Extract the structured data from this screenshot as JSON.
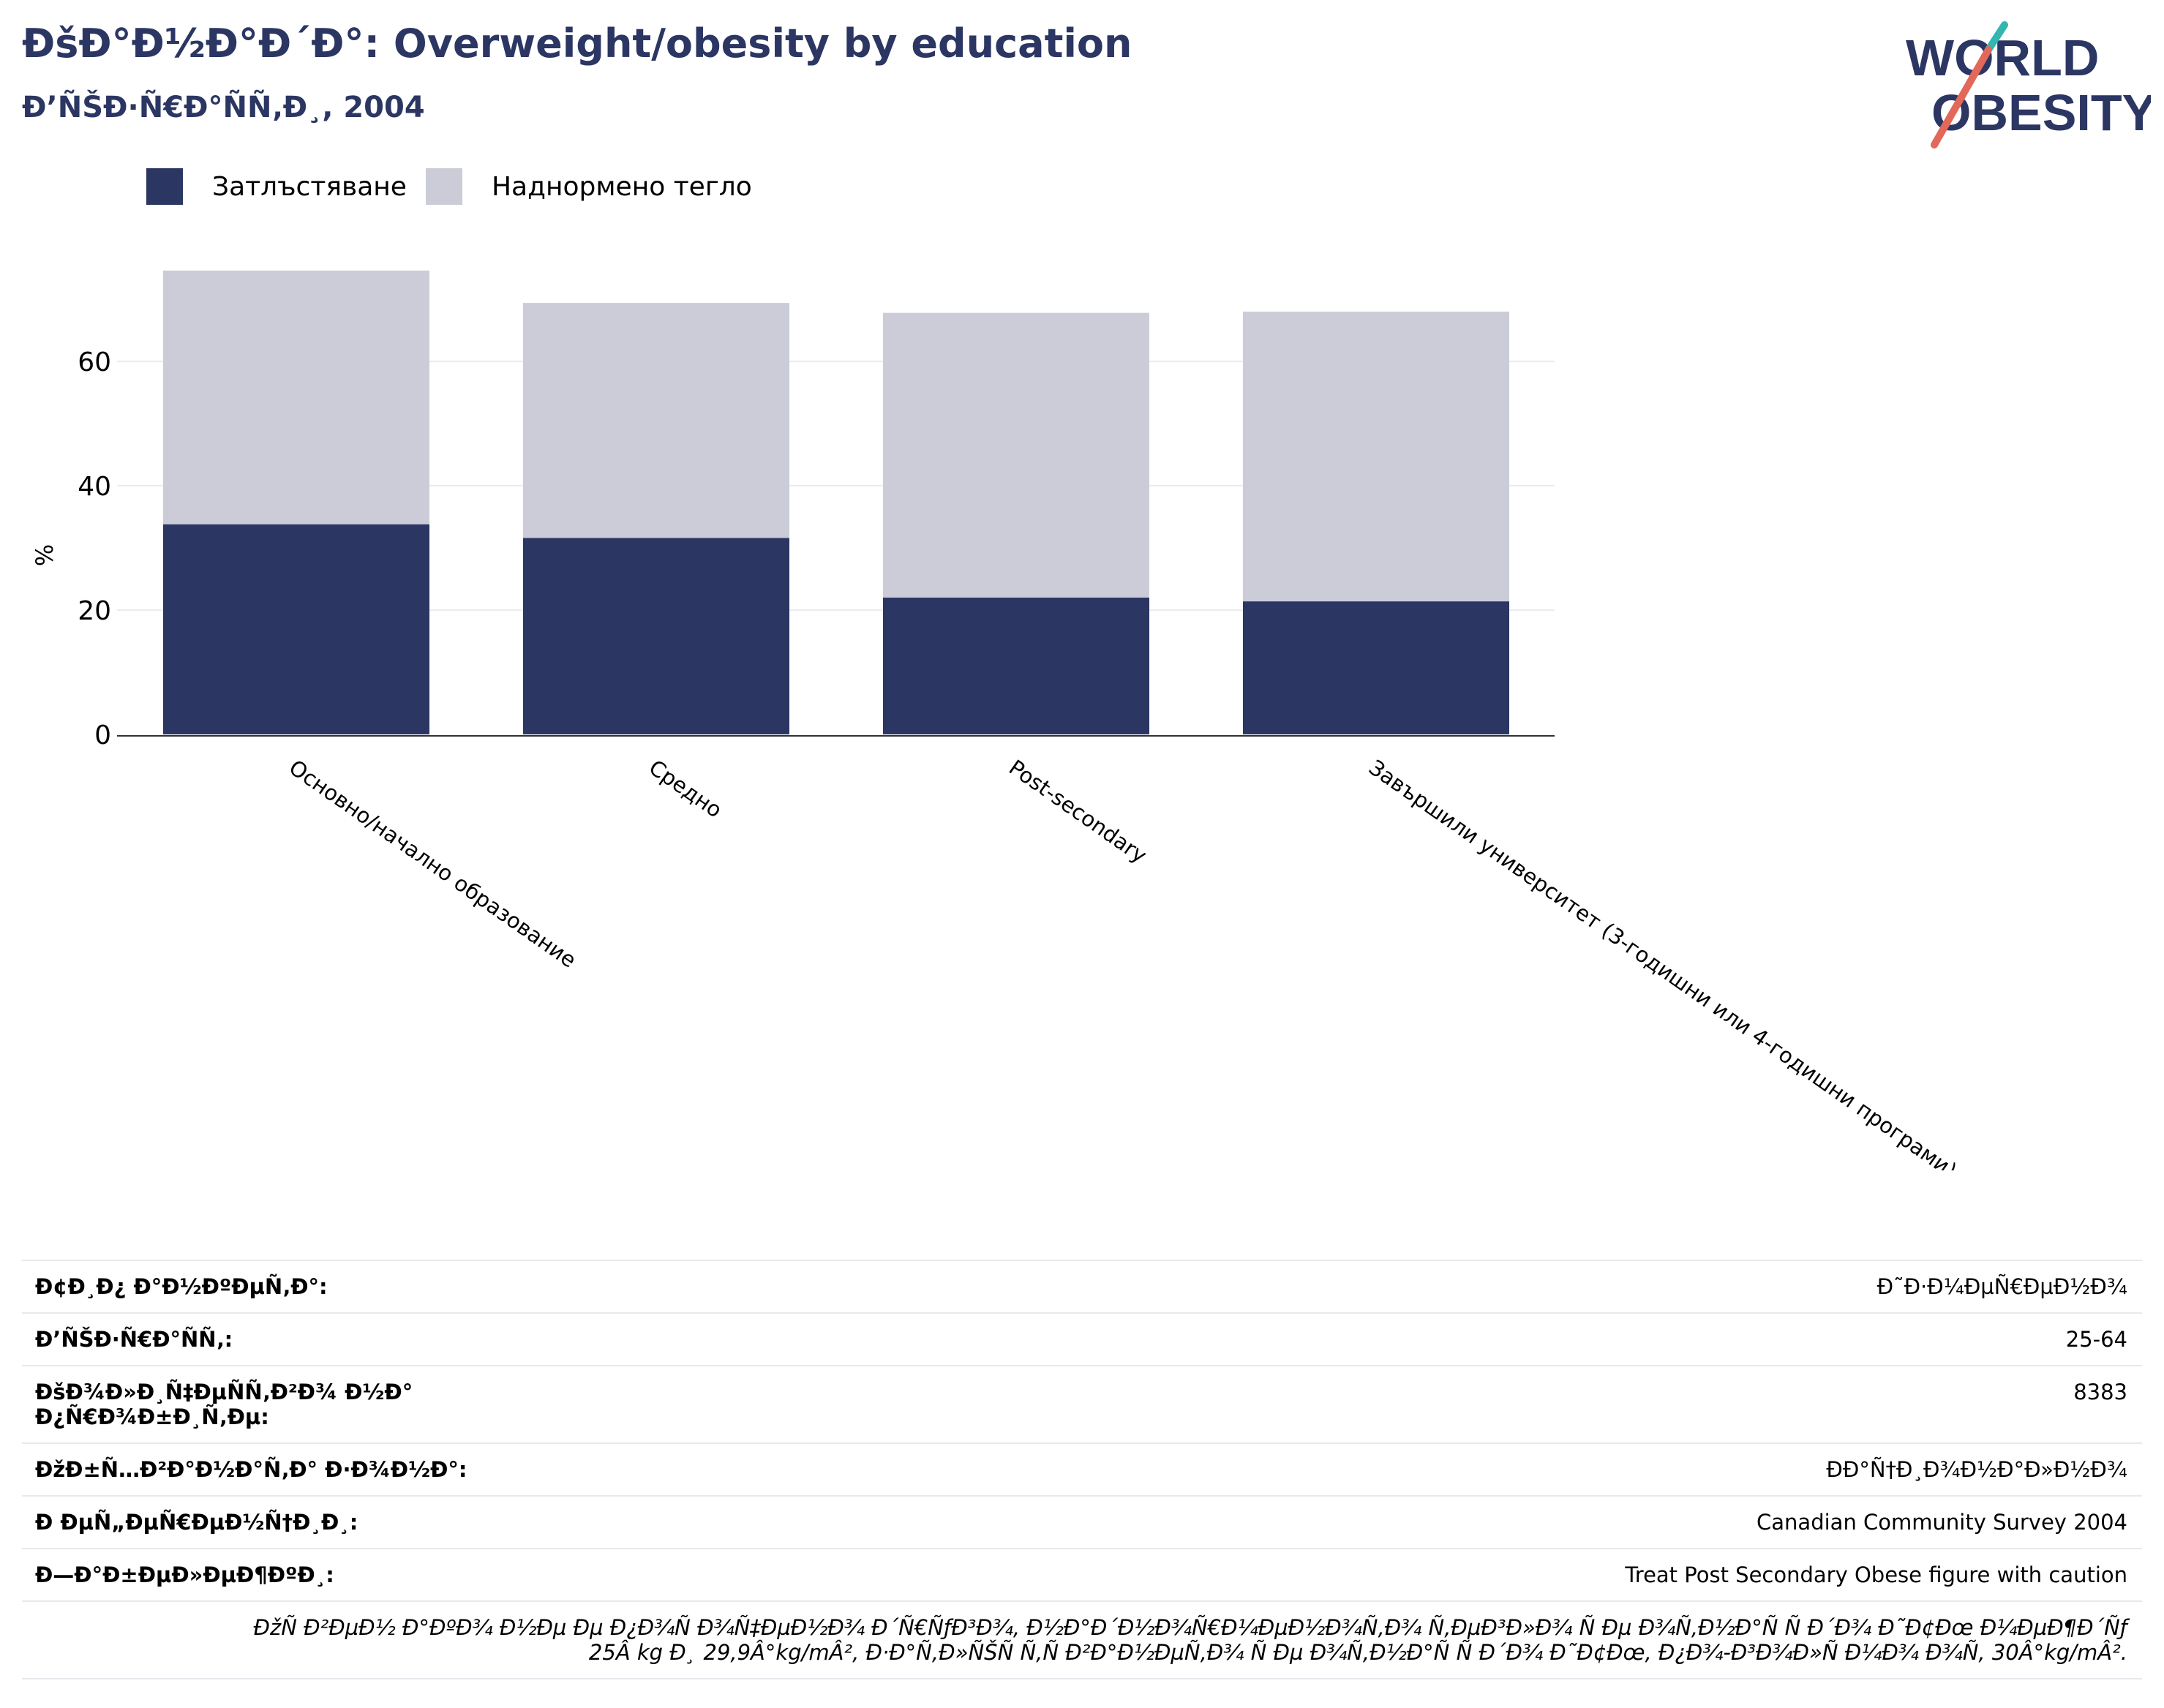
{
  "header": {
    "title": "ÐšÐ°Ð½Ð°Ð´Ð°: Overweight/obesity by education",
    "subtitle": "Ð’ÑŠÐ·Ñ€Ð°ÑÑ‚Ð¸, 2004"
  },
  "logo": {
    "line1": "WORLD",
    "line2": "OBESITY"
  },
  "colors": {
    "obese": "#2b3663",
    "overweight": "#cbccd8",
    "title": "#2b3663",
    "logo_accent_teal": "#34b5b0",
    "logo_accent_red": "#e2685a"
  },
  "legend": {
    "obese": "Затлъстяване",
    "overweight": "Наднормено тегло"
  },
  "chart_data": {
    "type": "bar",
    "stacked": true,
    "ylabel": "%",
    "xlabel": "",
    "ylim": [
      0,
      75
    ],
    "yticks": [
      0,
      20,
      40,
      60
    ],
    "grid": true,
    "legend_position": "top-left",
    "categories": [
      "Основно/начално образование",
      "Средно",
      "Post-secondary",
      "Завършили университет (3-годишни или 4-годишни програми)"
    ],
    "series": [
      {
        "name": "Затлъстяване",
        "values": [
          33.8,
          31.6,
          22.0,
          21.4
        ]
      },
      {
        "name": "Наднормено тегло",
        "values": [
          40.8,
          37.8,
          45.8,
          46.6
        ]
      }
    ]
  },
  "meta": {
    "rows": [
      {
        "key": "Ð¢Ð¸Ð¿ Ð°Ð½ÐºÐµÑ‚Ð°:",
        "value": "Ð˜Ð·Ð¼ÐµÑ€ÐµÐ½Ð¾"
      },
      {
        "key": "Ð’ÑŠÐ·Ñ€Ð°ÑÑ‚:",
        "value": "25-64"
      },
      {
        "key": "ÐšÐ¾Ð»Ð¸Ñ‡ÐµÑÑ‚Ð²Ð¾ Ð½Ð° Ð¿Ñ€Ð¾Ð±Ð¸Ñ‚Ðµ:",
        "value": "8383"
      },
      {
        "key": "ÐžÐ±Ñ…Ð²Ð°Ð½Ð°Ñ‚Ð° Ð·Ð¾Ð½Ð°:",
        "value": "ÐÐ°Ñ†Ð¸Ð¾Ð½Ð°Ð»Ð½Ð¾"
      },
      {
        "key": "Ð ÐµÑ„ÐµÑ€ÐµÐ½Ñ†Ð¸Ð¸:",
        "value": "Canadian Community Survey 2004"
      },
      {
        "key": "Ð—Ð°Ð±ÐµÐ»ÐµÐ¶ÐºÐ¸:",
        "value": "Treat Post Secondary Obese figure with caution"
      }
    ],
    "note_line1": "ÐžÑ Ð²ÐµÐ½ Ð°ÐºÐ¾ Ð½Ðµ Ðµ Ð¿Ð¾Ñ Ð¾Ñ‡ÐµÐ½Ð¾ Ð´Ñ€ÑƒÐ³Ð¾, Ð½Ð°Ð´Ð½Ð¾Ñ€Ð¼ÐµÐ½Ð¾Ñ‚Ð¾ Ñ‚ÐµÐ³Ð»Ð¾ Ñ Ðµ Ð¾Ñ‚Ð½Ð°Ñ Ñ  Ð´Ð¾ Ð˜Ð¢Ðœ Ð¼ÐµÐ¶Ð´Ñƒ",
    "note_line2": "25Â kg Ð¸ 29,9Â°kg/mÂ², Ð·Ð°Ñ‚Ð»ÑŠÑ Ñ‚Ñ Ð²Ð°Ð½ÐµÑ‚Ð¾ Ñ Ðµ Ð¾Ñ‚Ð½Ð°Ñ Ñ  Ð´Ð¾ Ð˜Ð¢Ðœ, Ð¿Ð¾-Ð³Ð¾Ð»Ñ Ð¼Ð¾ Ð¾Ñ‚ 30Â°kg/mÂ²."
  }
}
